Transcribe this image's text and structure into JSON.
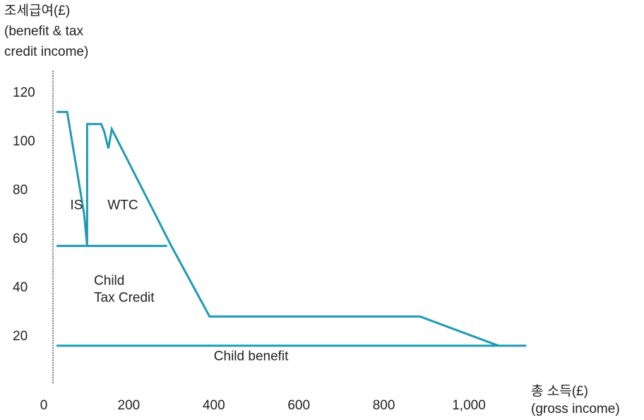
{
  "chart_data": {
    "type": "line",
    "ylabel": [
      "조세급여(£)",
      "(benefit & tax",
      "credit income)"
    ],
    "xlabel": [
      "총 소득(£)",
      "(gross income)"
    ],
    "xlim": [
      0,
      1150
    ],
    "ylim": [
      0,
      125
    ],
    "x_ticks": [
      {
        "value": 0,
        "label": "0"
      },
      {
        "value": 200,
        "label": "200"
      },
      {
        "value": 400,
        "label": "400"
      },
      {
        "value": 600,
        "label": "600"
      },
      {
        "value": 800,
        "label": "800"
      },
      {
        "value": 1000,
        "label": "1,000"
      }
    ],
    "y_ticks": [
      {
        "value": 20,
        "label": "20"
      },
      {
        "value": 40,
        "label": "40"
      },
      {
        "value": 60,
        "label": "60"
      },
      {
        "value": 80,
        "label": "80"
      },
      {
        "value": 100,
        "label": "100"
      },
      {
        "value": 120,
        "label": "120"
      }
    ],
    "series": [
      {
        "values": [
          [
            30,
            112
          ],
          [
            55,
            112
          ],
          [
            95,
            70
          ],
          [
            102,
            57
          ],
          [
            102,
            107
          ],
          [
            135,
            107
          ],
          [
            142,
            104
          ],
          [
            152,
            97
          ],
          [
            160,
            105
          ],
          [
            300,
            57
          ],
          [
            390,
            28
          ],
          [
            885,
            28
          ],
          [
            1070,
            16
          ]
        ]
      },
      {
        "values": [
          [
            30,
            57
          ],
          [
            290,
            57
          ]
        ]
      },
      {
        "values": [
          [
            30,
            16
          ],
          [
            1135,
            16
          ]
        ]
      }
    ],
    "annotations": [
      {
        "text": "IS",
        "x": 62,
        "y": 72
      },
      {
        "text": "WTC",
        "x": 150,
        "y": 72
      },
      {
        "text": "Child",
        "x": 118,
        "y": 41
      },
      {
        "text": "Tax Credit",
        "x": 118,
        "y": 34
      },
      {
        "text": "Child benefit",
        "x": 400,
        "y": 10
      }
    ],
    "line_color": "#1f9ab5",
    "grid": false
  }
}
